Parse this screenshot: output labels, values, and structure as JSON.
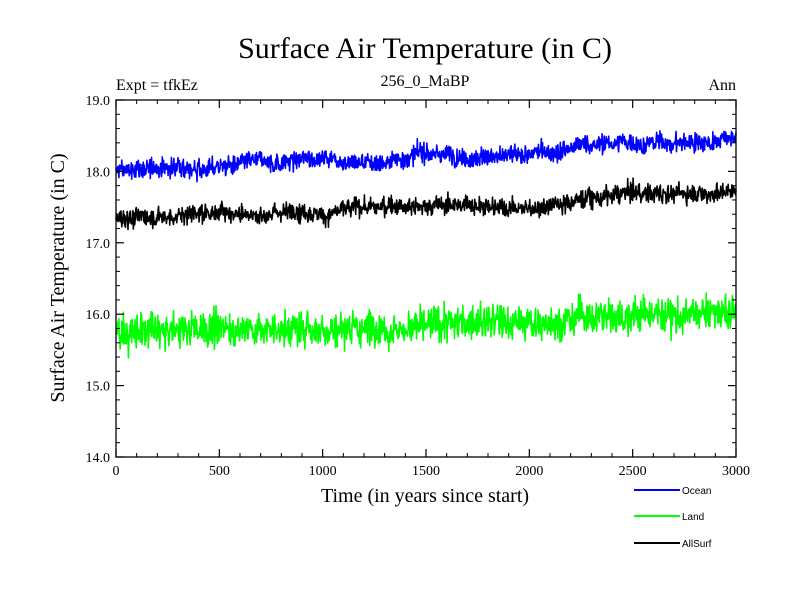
{
  "chart_data": {
    "type": "line",
    "title": "Surface Air Temperature (in C)",
    "left_label": "Expt = tfkEz",
    "center_label": "256_0_MaBP",
    "right_label": "Ann",
    "xlabel": "Time (in years since start)",
    "ylabel": "Surface Air Temperature (in C)",
    "xlim": [
      0,
      3000
    ],
    "ylim": [
      14.0,
      19.0
    ],
    "x_ticks": [
      "0",
      "500",
      "1000",
      "1500",
      "2000",
      "2500",
      "3000"
    ],
    "y_ticks": [
      "14.0",
      "15.0",
      "16.0",
      "17.0",
      "18.0",
      "19.0"
    ],
    "grid": false,
    "legend_position": "bottom-right",
    "series": [
      {
        "name": "Ocean",
        "color": "#0000ff",
        "x": [
          0,
          250,
          500,
          750,
          1000,
          1250,
          1500,
          1750,
          2000,
          2250,
          2500,
          2750,
          3000
        ],
        "values": [
          18.0,
          18.05,
          18.1,
          18.1,
          18.2,
          18.15,
          18.25,
          18.25,
          18.2,
          18.35,
          18.4,
          18.4,
          18.45
        ],
        "noise": 0.13
      },
      {
        "name": "Land",
        "color": "#00ff00",
        "x": [
          0,
          250,
          500,
          750,
          1000,
          1250,
          1500,
          1750,
          2000,
          2250,
          2500,
          2750,
          3000
        ],
        "values": [
          15.75,
          15.75,
          15.8,
          15.8,
          15.8,
          15.85,
          15.85,
          15.9,
          15.85,
          15.95,
          16.0,
          16.0,
          16.0
        ],
        "noise": 0.24
      },
      {
        "name": "AllSurf",
        "color": "#000000",
        "x": [
          0,
          250,
          500,
          750,
          1000,
          1250,
          1500,
          1750,
          2000,
          2250,
          2500,
          2750,
          3000
        ],
        "values": [
          17.35,
          17.4,
          17.45,
          17.45,
          17.45,
          17.5,
          17.55,
          17.55,
          17.5,
          17.65,
          17.7,
          17.7,
          17.75
        ],
        "noise": 0.13
      }
    ]
  }
}
